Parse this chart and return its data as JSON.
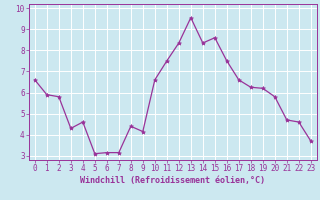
{
  "x": [
    0,
    1,
    2,
    3,
    4,
    5,
    6,
    7,
    8,
    9,
    10,
    11,
    12,
    13,
    14,
    15,
    16,
    17,
    18,
    19,
    20,
    21,
    22,
    23
  ],
  "y": [
    6.6,
    5.9,
    5.8,
    4.3,
    4.6,
    3.1,
    3.15,
    3.15,
    4.4,
    4.15,
    6.6,
    7.5,
    8.35,
    9.55,
    8.35,
    8.6,
    7.5,
    6.6,
    6.25,
    6.2,
    5.8,
    4.7,
    4.6,
    3.7
  ],
  "line_color": "#993399",
  "marker": "*",
  "marker_size": 3,
  "bg_color": "#cce8f0",
  "grid_color": "#ffffff",
  "xlabel": "Windchill (Refroidissement éolien,°C)",
  "xlabel_color": "#993399",
  "tick_color": "#993399",
  "spine_color": "#993399",
  "xlim": [
    -0.5,
    23.5
  ],
  "ylim": [
    2.8,
    10.2
  ],
  "yticks": [
    3,
    4,
    5,
    6,
    7,
    8,
    9,
    10
  ],
  "xticks": [
    0,
    1,
    2,
    3,
    4,
    5,
    6,
    7,
    8,
    9,
    10,
    11,
    12,
    13,
    14,
    15,
    16,
    17,
    18,
    19,
    20,
    21,
    22,
    23
  ],
  "tick_fontsize": 5.5,
  "xlabel_fontsize": 6.0
}
